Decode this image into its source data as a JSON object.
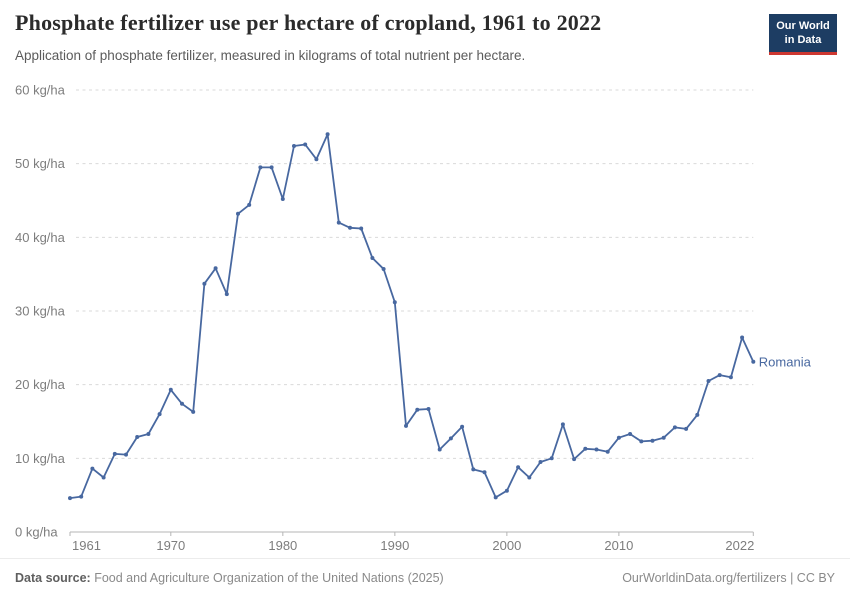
{
  "header": {
    "title": "Phosphate fertilizer use per hectare of cropland, 1961 to 2022",
    "subtitle": "Application of phosphate fertilizer, measured in kilograms of total nutrient per hectare.",
    "logo": {
      "line1": "Our World",
      "line2": "in Data",
      "bg_color": "#1d3d63",
      "stripe_color": "#cd3731"
    }
  },
  "chart_data": {
    "type": "line",
    "title": "Phosphate fertilizer use per hectare of cropland, 1961 to 2022",
    "unit": "kg/ha",
    "xlabel": "",
    "ylabel": "kg/ha",
    "xlim": [
      1961,
      2022
    ],
    "ylim": [
      0,
      60
    ],
    "grid": "horizontal-dashed",
    "legend_position": "end-of-line-label",
    "line_color": "#4868a0",
    "axis_color": "#b5b5b5",
    "grid_color": "#d9d9d9",
    "tick_label_color": "#7d7d7d",
    "yticks": [
      0,
      10,
      20,
      30,
      40,
      50,
      60
    ],
    "ytick_labels": [
      "0 kg/ha",
      "10 kg/ha",
      "20 kg/ha",
      "30 kg/ha",
      "40 kg/ha",
      "50 kg/ha",
      "60 kg/ha"
    ],
    "xticks": [
      1961,
      1970,
      1980,
      1990,
      2000,
      2010,
      2022
    ],
    "xtick_labels": [
      "1961",
      "1970",
      "1980",
      "1990",
      "2000",
      "2010",
      "2022"
    ],
    "entity_label": "Romania",
    "series": [
      {
        "name": "Romania",
        "x": [
          1961,
          1962,
          1963,
          1964,
          1965,
          1966,
          1967,
          1968,
          1969,
          1970,
          1971,
          1972,
          1973,
          1974,
          1975,
          1976,
          1977,
          1978,
          1979,
          1980,
          1981,
          1982,
          1983,
          1984,
          1985,
          1986,
          1987,
          1988,
          1989,
          1990,
          1991,
          1992,
          1993,
          1994,
          1995,
          1996,
          1997,
          1998,
          1999,
          2000,
          2001,
          2002,
          2003,
          2004,
          2005,
          2006,
          2007,
          2008,
          2009,
          2010,
          2011,
          2012,
          2013,
          2014,
          2015,
          2016,
          2017,
          2018,
          2019,
          2020,
          2021,
          2022
        ],
        "values": [
          4.6,
          4.8,
          8.6,
          7.4,
          10.6,
          10.5,
          12.9,
          13.3,
          16.0,
          19.3,
          17.4,
          16.3,
          33.7,
          35.8,
          32.3,
          43.2,
          44.4,
          49.5,
          49.5,
          45.2,
          52.4,
          52.6,
          50.6,
          54.0,
          42.0,
          41.3,
          41.2,
          37.2,
          35.7,
          31.2,
          14.4,
          16.6,
          16.7,
          11.2,
          12.7,
          14.3,
          8.5,
          8.1,
          4.7,
          5.6,
          8.8,
          7.4,
          9.5,
          10.0,
          14.6,
          9.9,
          11.3,
          11.2,
          10.9,
          12.8,
          13.3,
          12.3,
          12.4,
          12.8,
          14.2,
          14.0,
          15.9,
          20.5,
          21.3,
          21.0,
          26.4,
          23.1
        ]
      }
    ]
  },
  "footer": {
    "source_label": "Data source:",
    "source_text": " Food and Agriculture Organization of the United Nations (2025)",
    "link_text": "OurWorldinData.org/fertilizers",
    "separator": " | ",
    "license": "CC BY"
  }
}
